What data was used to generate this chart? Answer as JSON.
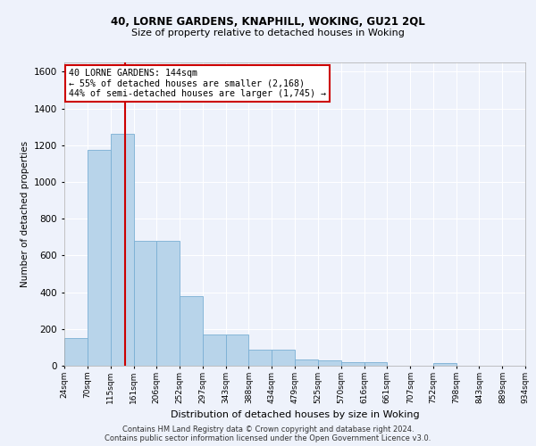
{
  "title1": "40, LORNE GARDENS, KNAPHILL, WOKING, GU21 2QL",
  "title2": "Size of property relative to detached houses in Woking",
  "xlabel": "Distribution of detached houses by size in Woking",
  "ylabel": "Number of detached properties",
  "annotation_line1": "40 LORNE GARDENS: 144sqm",
  "annotation_line2": "← 55% of detached houses are smaller (2,168)",
  "annotation_line3": "44% of semi-detached houses are larger (1,745) →",
  "property_size": 144,
  "bar_color": "#b8d4ea",
  "bar_edge_color": "#7aafd4",
  "vline_color": "#cc0000",
  "annotation_box_color": "#cc0000",
  "background_color": "#eef2fb",
  "grid_color": "#ffffff",
  "footer_line1": "Contains HM Land Registry data © Crown copyright and database right 2024.",
  "footer_line2": "Contains public sector information licensed under the Open Government Licence v3.0.",
  "bin_edges": [
    24,
    70,
    115,
    161,
    206,
    252,
    297,
    343,
    388,
    434,
    479,
    525,
    570,
    616,
    661,
    707,
    752,
    798,
    843,
    889,
    934
  ],
  "bin_labels": [
    "24sqm",
    "70sqm",
    "115sqm",
    "161sqm",
    "206sqm",
    "252sqm",
    "297sqm",
    "343sqm",
    "388sqm",
    "434sqm",
    "479sqm",
    "525sqm",
    "570sqm",
    "616sqm",
    "661sqm",
    "707sqm",
    "752sqm",
    "798sqm",
    "843sqm",
    "889sqm",
    "934sqm"
  ],
  "bar_heights": [
    150,
    1175,
    1260,
    680,
    680,
    380,
    170,
    170,
    85,
    85,
    35,
    30,
    20,
    20,
    0,
    0,
    15,
    0,
    0,
    0
  ],
  "ylim": [
    0,
    1650
  ],
  "yticks": [
    0,
    200,
    400,
    600,
    800,
    1000,
    1200,
    1400,
    1600
  ]
}
